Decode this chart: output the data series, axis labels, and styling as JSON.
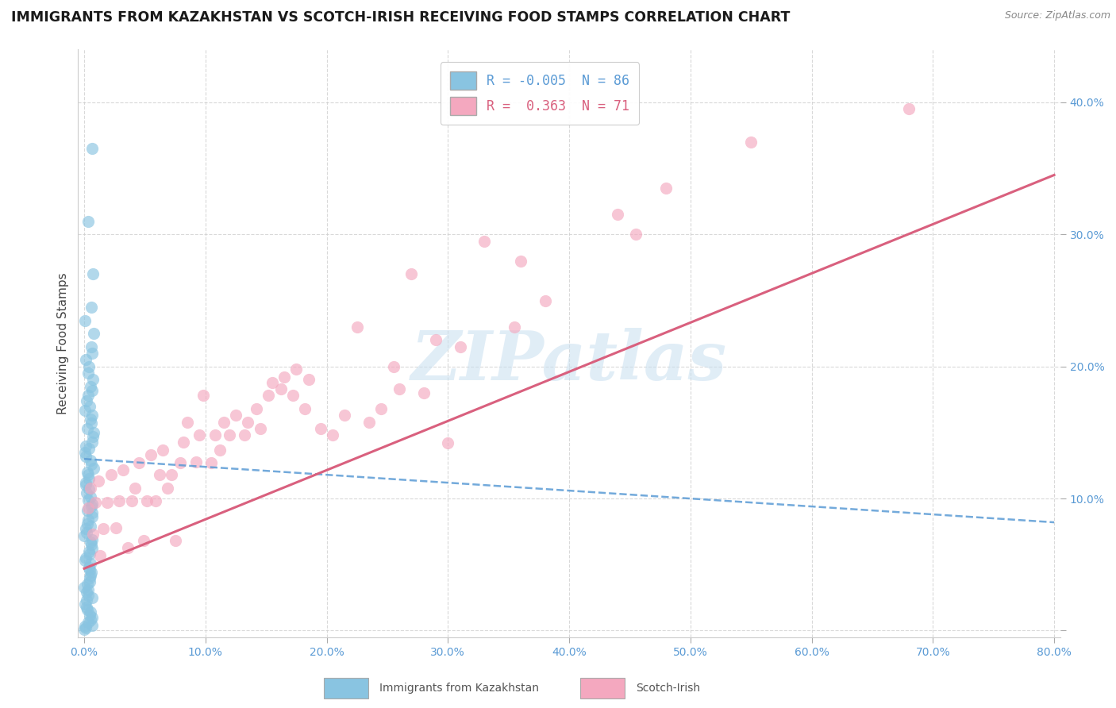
{
  "title": "IMMIGRANTS FROM KAZAKHSTAN VS SCOTCH-IRISH RECEIVING FOOD STAMPS CORRELATION CHART",
  "source": "Source: ZipAtlas.com",
  "xlabel_blue": "Immigrants from Kazakhstan",
  "xlabel_pink": "Scotch-Irish",
  "ylabel": "Receiving Food Stamps",
  "xlim": [
    -0.005,
    0.805
  ],
  "ylim": [
    -0.005,
    0.44
  ],
  "xticks": [
    0.0,
    0.1,
    0.2,
    0.3,
    0.4,
    0.5,
    0.6,
    0.7,
    0.8
  ],
  "yticks": [
    0.0,
    0.1,
    0.2,
    0.3,
    0.4
  ],
  "ytick_labels": [
    "",
    "10.0%",
    "20.0%",
    "30.0%",
    "40.0%"
  ],
  "xtick_labels": [
    "0.0%",
    "",
    "",
    "",
    "",
    "",
    "",
    "",
    "80.0%"
  ],
  "R_blue": -0.005,
  "N_blue": 86,
  "R_pink": 0.363,
  "N_pink": 71,
  "blue_scatter_color": "#89c4e1",
  "pink_scatter_color": "#f4a8bf",
  "blue_line_color": "#5b9bd5",
  "pink_line_color": "#d9607e",
  "blue_trend_x0": 0.0,
  "blue_trend_y0": 0.13,
  "blue_trend_x1": 0.8,
  "blue_trend_y1": 0.082,
  "pink_trend_x0": 0.0,
  "pink_trend_y0": 0.047,
  "pink_trend_x1": 0.8,
  "pink_trend_y1": 0.345,
  "watermark_text": "ZIPatlas",
  "watermark_color": "#c8dff0",
  "blue_scatter_x": [
    0.0,
    0.0,
    0.0,
    0.0,
    0.0,
    0.0,
    0.0,
    0.0,
    0.0,
    0.0,
    0.0,
    0.0,
    0.0,
    0.0,
    0.0,
    0.0,
    0.0,
    0.0,
    0.0,
    0.0,
    0.0,
    0.0,
    0.0,
    0.0,
    0.0,
    0.0,
    0.0,
    0.0,
    0.0,
    0.0,
    0.0,
    0.0,
    0.0,
    0.0,
    0.0,
    0.0,
    0.0,
    0.0,
    0.0,
    0.0,
    0.0,
    0.0,
    0.0,
    0.0,
    0.0,
    0.0,
    0.0,
    0.0,
    0.0,
    0.0,
    0.0,
    0.0,
    0.0,
    0.0,
    0.0,
    0.0,
    0.0,
    0.0,
    0.0,
    0.0,
    0.0,
    0.0,
    0.0,
    0.0,
    0.0,
    0.0,
    0.0,
    0.0,
    0.0,
    0.0,
    0.0,
    0.0,
    0.0,
    0.0,
    0.0,
    0.0,
    0.0,
    0.0,
    0.0,
    0.0,
    0.0,
    0.0,
    0.0,
    0.0,
    0.0,
    0.0
  ],
  "blue_scatter_y": [
    0.365,
    0.31,
    0.27,
    0.245,
    0.235,
    0.225,
    0.215,
    0.21,
    0.205,
    0.2,
    0.195,
    0.19,
    0.185,
    0.182,
    0.178,
    0.174,
    0.17,
    0.167,
    0.163,
    0.16,
    0.157,
    0.153,
    0.15,
    0.147,
    0.143,
    0.14,
    0.138,
    0.135,
    0.132,
    0.129,
    0.126,
    0.123,
    0.12,
    0.118,
    0.115,
    0.112,
    0.11,
    0.107,
    0.104,
    0.101,
    0.099,
    0.096,
    0.094,
    0.091,
    0.089,
    0.086,
    0.084,
    0.081,
    0.079,
    0.077,
    0.074,
    0.072,
    0.069,
    0.067,
    0.065,
    0.062,
    0.06,
    0.058,
    0.055,
    0.053,
    0.051,
    0.048,
    0.046,
    0.044,
    0.042,
    0.04,
    0.037,
    0.035,
    0.033,
    0.031,
    0.029,
    0.027,
    0.025,
    0.023,
    0.02,
    0.018,
    0.016,
    0.014,
    0.012,
    0.01,
    0.008,
    0.006,
    0.004,
    0.002,
    0.001,
    0.003
  ],
  "pink_scatter_x": [
    0.68,
    0.55,
    0.48,
    0.455,
    0.44,
    0.38,
    0.36,
    0.355,
    0.33,
    0.31,
    0.3,
    0.29,
    0.28,
    0.27,
    0.26,
    0.255,
    0.245,
    0.235,
    0.225,
    0.215,
    0.205,
    0.195,
    0.185,
    0.182,
    0.175,
    0.172,
    0.165,
    0.162,
    0.155,
    0.152,
    0.145,
    0.142,
    0.135,
    0.132,
    0.125,
    0.12,
    0.115,
    0.112,
    0.108,
    0.105,
    0.098,
    0.095,
    0.092,
    0.085,
    0.082,
    0.079,
    0.075,
    0.072,
    0.069,
    0.065,
    0.062,
    0.059,
    0.055,
    0.052,
    0.049,
    0.045,
    0.042,
    0.039,
    0.036,
    0.032,
    0.029,
    0.026,
    0.022,
    0.019,
    0.016,
    0.013,
    0.012,
    0.009,
    0.007,
    0.005,
    0.003
  ],
  "pink_scatter_y": [
    0.395,
    0.37,
    0.335,
    0.3,
    0.315,
    0.25,
    0.28,
    0.23,
    0.295,
    0.215,
    0.142,
    0.22,
    0.18,
    0.27,
    0.183,
    0.2,
    0.168,
    0.158,
    0.23,
    0.163,
    0.148,
    0.153,
    0.19,
    0.168,
    0.198,
    0.178,
    0.192,
    0.183,
    0.188,
    0.178,
    0.153,
    0.168,
    0.158,
    0.148,
    0.163,
    0.148,
    0.158,
    0.137,
    0.148,
    0.127,
    0.178,
    0.148,
    0.128,
    0.158,
    0.143,
    0.127,
    0.068,
    0.118,
    0.108,
    0.137,
    0.118,
    0.098,
    0.133,
    0.098,
    0.068,
    0.127,
    0.108,
    0.098,
    0.063,
    0.122,
    0.098,
    0.078,
    0.118,
    0.097,
    0.077,
    0.057,
    0.113,
    0.097,
    0.073,
    0.108,
    0.093
  ]
}
